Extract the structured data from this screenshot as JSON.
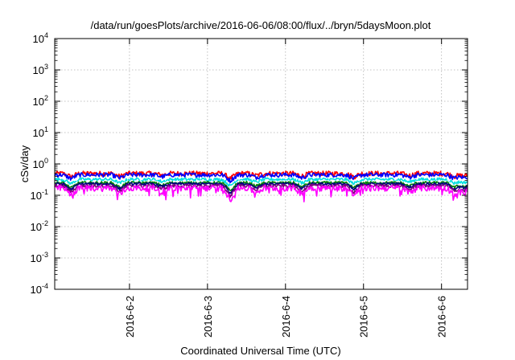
{
  "chart_data": {
    "type": "line",
    "title": "/data/run/goesPlots/archive/2016-06-06/08:00/flux/../bryn/5daysMoon.plot",
    "xlabel": "Coordinated Universal Time (UTC)",
    "ylabel": "cSv/day",
    "y_scale": "log",
    "ylim": [
      0.0001,
      10000
    ],
    "y_ticks": [
      {
        "value": 0.0001,
        "label_base": "10",
        "label_exp": "-4"
      },
      {
        "value": 0.001,
        "label_base": "10",
        "label_exp": "-3"
      },
      {
        "value": 0.01,
        "label_base": "10",
        "label_exp": "-2"
      },
      {
        "value": 0.1,
        "label_base": "10",
        "label_exp": "-1"
      },
      {
        "value": 1,
        "label_base": "10",
        "label_exp": "0"
      },
      {
        "value": 10,
        "label_base": "10",
        "label_exp": "1"
      },
      {
        "value": 100,
        "label_base": "10",
        "label_exp": "2"
      },
      {
        "value": 1000,
        "label_base": "10",
        "label_exp": "3"
      },
      {
        "value": 10000,
        "label_base": "10",
        "label_exp": "4"
      }
    ],
    "xlim": [
      "2016-06-01T01:00",
      "2016-06-06T08:00"
    ],
    "x_ticks": [
      {
        "date": "2016-06-02T00:00",
        "label": "2016-6-2"
      },
      {
        "date": "2016-06-03T00:00",
        "label": "2016-6-3"
      },
      {
        "date": "2016-06-04T00:00",
        "label": "2016-6-4"
      },
      {
        "date": "2016-06-05T00:00",
        "label": "2016-6-5"
      },
      {
        "date": "2016-06-06T00:00",
        "label": "2016-6-6"
      }
    ],
    "grid": true,
    "legend": "none",
    "dips": [
      {
        "date": "2016-06-01T06:00",
        "depth": 0.22
      },
      {
        "date": "2016-06-01T21:00",
        "depth": 0.2
      },
      {
        "date": "2016-06-02T10:00",
        "depth": 0.12
      },
      {
        "date": "2016-06-03T07:00",
        "depth": 0.32
      },
      {
        "date": "2016-06-03T15:00",
        "depth": 0.15
      },
      {
        "date": "2016-06-04T05:00",
        "depth": 0.18
      },
      {
        "date": "2016-06-04T21:00",
        "depth": 0.22
      },
      {
        "date": "2016-06-05T14:00",
        "depth": 0.15
      },
      {
        "date": "2016-06-06T04:00",
        "depth": 0.2
      },
      {
        "date": "2016-06-06T07:00",
        "depth": 0.18
      }
    ],
    "series": [
      {
        "color": "#ff0000",
        "base": 0.5,
        "noise": 0.18
      },
      {
        "color": "#0000ff",
        "base": 0.45,
        "noise": 0.16
      },
      {
        "color": "#00e0e0",
        "base": 0.32,
        "noise": 0.12
      },
      {
        "color": "#ffffff",
        "base": 0.27,
        "noise": 0.1
      },
      {
        "color": "#008000",
        "base": 0.25,
        "noise": 0.1
      },
      {
        "color": "#000080",
        "base": 0.23,
        "noise": 0.1
      },
      {
        "color": "#800080",
        "base": 0.2,
        "noise": 0.12
      },
      {
        "color": "#ff00ff",
        "base": 0.17,
        "noise": 0.22
      }
    ]
  }
}
